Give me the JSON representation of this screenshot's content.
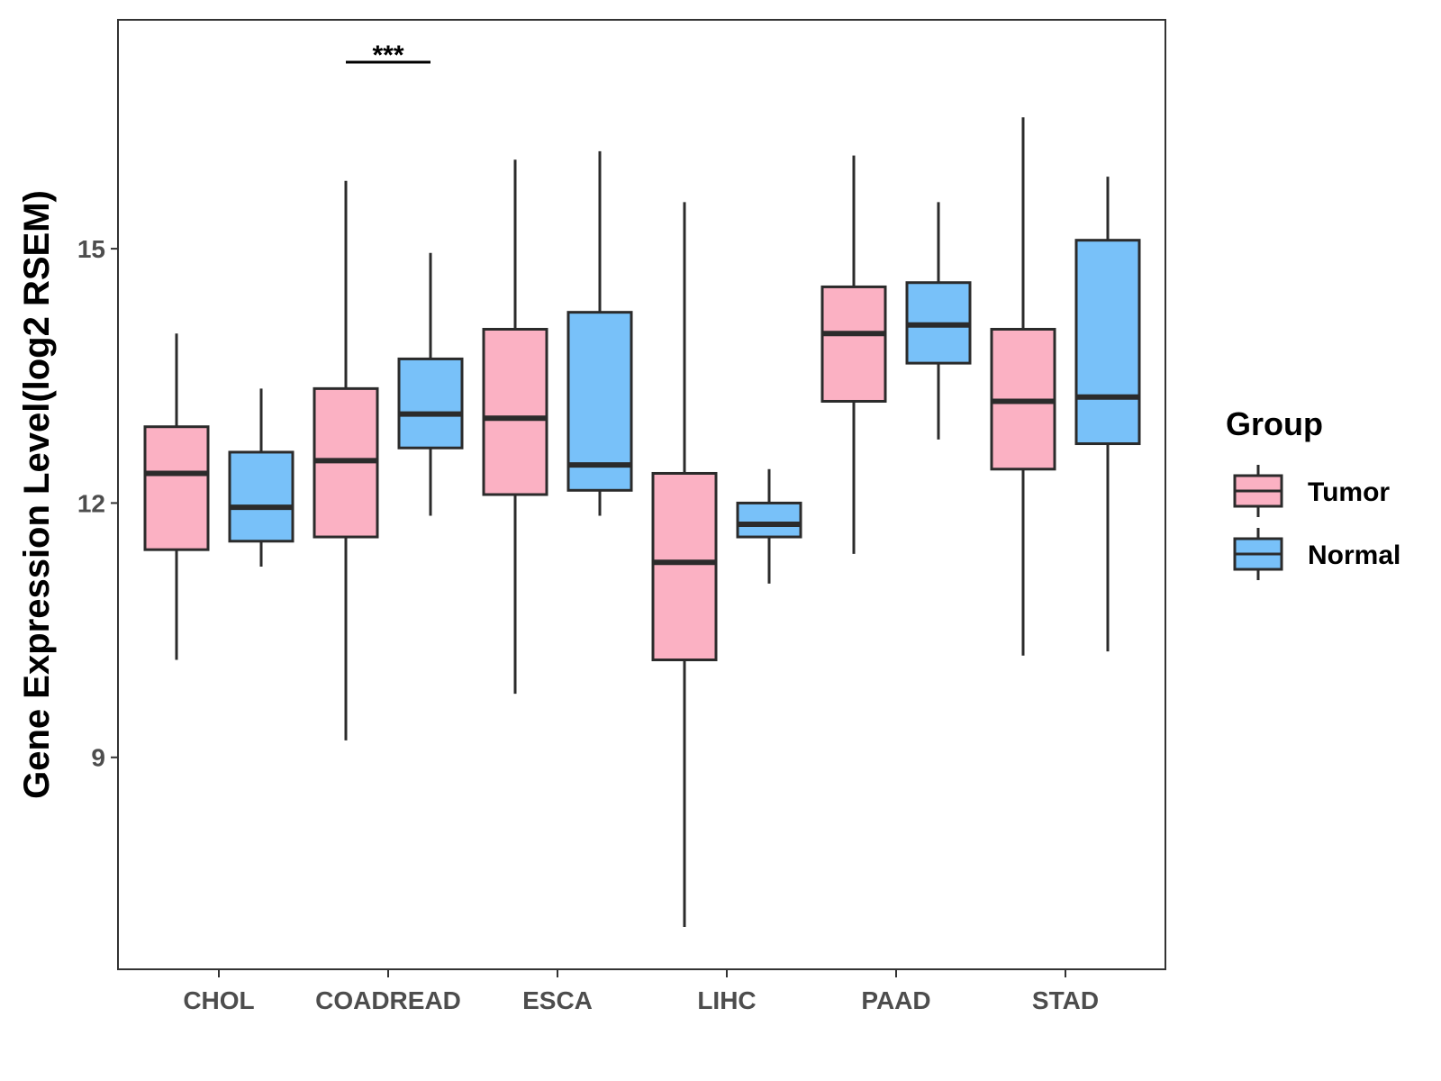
{
  "chart_data": {
    "type": "box",
    "title": "",
    "xlabel": "",
    "ylabel": "Gene Expression Level(log2 RSEM)",
    "ylim": [
      6.5,
      17.7
    ],
    "yticks": [
      9,
      12,
      15
    ],
    "categories": [
      "CHOL",
      "COADREAD",
      "ESCA",
      "LIHC",
      "PAAD",
      "STAD"
    ],
    "legend": {
      "title": "Group",
      "position": "right",
      "entries": [
        "Tumor",
        "Normal"
      ]
    },
    "colors": {
      "Tumor": "#FBB1C3",
      "Normal": "#78C1F9",
      "stroke": "#2b2b2b"
    },
    "series": [
      {
        "name": "Tumor",
        "boxes": [
          {
            "min": 10.15,
            "q1": 11.45,
            "median": 12.35,
            "q3": 12.9,
            "max": 14.0
          },
          {
            "min": 9.2,
            "q1": 11.6,
            "median": 12.5,
            "q3": 13.35,
            "max": 15.8
          },
          {
            "min": 9.75,
            "q1": 12.1,
            "median": 13.0,
            "q3": 14.05,
            "max": 16.05
          },
          {
            "min": 7.0,
            "q1": 10.15,
            "median": 11.3,
            "q3": 12.35,
            "max": 15.55
          },
          {
            "min": 11.4,
            "q1": 13.2,
            "median": 14.0,
            "q3": 14.55,
            "max": 16.1
          },
          {
            "min": 10.2,
            "q1": 12.4,
            "median": 13.2,
            "q3": 14.05,
            "max": 16.55
          }
        ]
      },
      {
        "name": "Normal",
        "boxes": [
          {
            "min": 11.25,
            "q1": 11.55,
            "median": 11.95,
            "q3": 12.6,
            "max": 13.35
          },
          {
            "min": 11.85,
            "q1": 12.65,
            "median": 13.05,
            "q3": 13.7,
            "max": 14.95
          },
          {
            "min": 11.85,
            "q1": 12.15,
            "median": 12.45,
            "q3": 14.25,
            "max": 16.15
          },
          {
            "min": 11.05,
            "q1": 11.6,
            "median": 11.75,
            "q3": 12.0,
            "max": 12.4
          },
          {
            "min": 12.75,
            "q1": 13.65,
            "median": 14.1,
            "q3": 14.6,
            "max": 15.55
          },
          {
            "min": 10.25,
            "q1": 12.7,
            "median": 13.25,
            "q3": 15.1,
            "max": 15.85
          }
        ]
      }
    ],
    "annotations": [
      {
        "text": "***",
        "category": "COADREAD",
        "y": 17.2
      }
    ]
  }
}
